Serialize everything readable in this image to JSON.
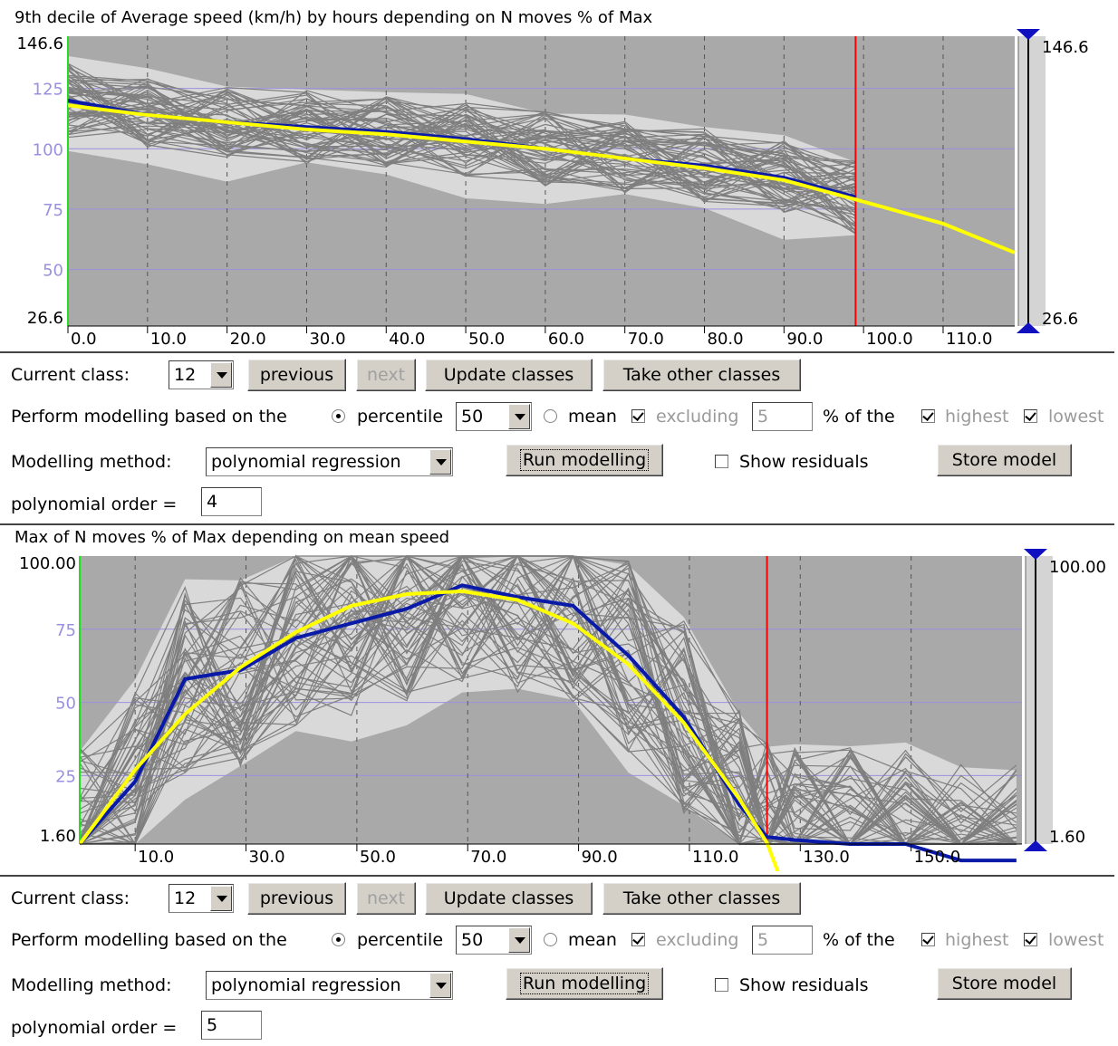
{
  "chart_data": [
    {
      "type": "line",
      "title": "9th decile of Average speed (km/h) by hours depending on N moves % of Max",
      "x_ticks": [
        "0.0",
        "10.0",
        "20.0",
        "30.0",
        "40.0",
        "50.0",
        "60.0",
        "70.0",
        "80.0",
        "90.0",
        "100.0",
        "110.0"
      ],
      "xlim": [
        0,
        119
      ],
      "y_ticks": [
        "125",
        "100",
        "75",
        "50"
      ],
      "y_min_label": "26.6",
      "y_max_label": "146.6",
      "ylim": [
        26.6,
        146.6
      ],
      "right_axis_top": "146.6",
      "right_axis_bottom": "26.6",
      "threshold_x": 99,
      "series": [
        {
          "values_x": [
            0,
            10,
            20,
            30,
            40,
            50,
            60,
            70,
            80,
            90,
            99
          ],
          "values_y": [
            120,
            114,
            111,
            109,
            107,
            104,
            100,
            96,
            93,
            88,
            80
          ]
        },
        {
          "values_x": [
            0,
            10,
            20,
            30,
            40,
            50,
            60,
            70,
            80,
            90,
            99,
            110,
            119
          ],
          "values_y": [
            118,
            114,
            111,
            108,
            106,
            103,
            100,
            96,
            92,
            87,
            79,
            69,
            57
          ]
        }
      ],
      "colors": {
        "median": "#0a1aa8",
        "model": "#ffff00",
        "individual": "#7f7f7f",
        "envelope": "#d9d9d9",
        "background": "#a9a9a9",
        "threshold": "#ff0000",
        "zero_axis": "#22dd22",
        "grid": "#9a90e0"
      }
    },
    {
      "type": "line",
      "title": "Max of N moves % of Max depending on mean speed",
      "x_ticks": [
        "10.0",
        "30.0",
        "50.0",
        "70.0",
        "90.0",
        "110.0",
        "130.0",
        "150.0"
      ],
      "x_tick_values": [
        10,
        30,
        50,
        70,
        90,
        110,
        130,
        150
      ],
      "xlim": [
        0,
        170
      ],
      "y_ticks": [
        "75",
        "50",
        "25"
      ],
      "y_min_label": "1.60",
      "y_max_label": "100.00",
      "ylim": [
        1.6,
        100
      ],
      "right_axis_top": "100.00",
      "right_axis_bottom": "1.60",
      "threshold_x": 124,
      "series": [
        {
          "values_x": [
            0,
            10,
            19,
            29,
            39,
            49,
            59,
            69,
            79,
            89,
            99,
            109,
            119,
            124,
            129,
            139,
            149,
            159,
            169
          ],
          "values_y": [
            1.6,
            23,
            58,
            61,
            72,
            77,
            82,
            90,
            86,
            83,
            66,
            45,
            15,
            4,
            3,
            1.6,
            1.6,
            -4,
            -4
          ]
        },
        {
          "values_x": [
            0,
            10,
            19,
            29,
            39,
            49,
            59,
            69,
            79,
            89,
            99,
            109,
            119,
            124,
            126
          ],
          "values_y": [
            1.6,
            27,
            46,
            62,
            74,
            83,
            87,
            88,
            85,
            77,
            63,
            43,
            17,
            2,
            -8
          ]
        }
      ],
      "colors": {
        "median": "#0a1aa8",
        "model": "#ffff00",
        "individual": "#7f7f7f",
        "envelope": "#d9d9d9",
        "background": "#a9a9a9",
        "threshold": "#ff0000",
        "zero_axis": "#22dd22",
        "grid": "#9a90e0"
      }
    }
  ],
  "controls": [
    {
      "current_class_label": "Current class:",
      "current_class_value": "12",
      "previous_label": "previous",
      "next_label": "next",
      "update_classes_label": "Update classes",
      "take_other_classes_label": "Take other classes",
      "perform_label": "Perform modelling based on the",
      "percentile_label": "percentile",
      "percentile_value": "50",
      "mean_label": "mean",
      "excluding_label": "excluding",
      "excluding_value": "5",
      "percent_of_the_label": "% of the",
      "highest_label": "highest",
      "lowest_label": "lowest",
      "method_label": "Modelling method:",
      "method_value": "polynomial regression",
      "run_label": "Run modelling",
      "show_residuals_label": "Show residuals",
      "store_label": "Store model",
      "order_label": "polynomial order =",
      "order_value": "4"
    },
    {
      "current_class_label": "Current class:",
      "current_class_value": "12",
      "previous_label": "previous",
      "next_label": "next",
      "update_classes_label": "Update classes",
      "take_other_classes_label": "Take other classes",
      "perform_label": "Perform modelling based on the",
      "percentile_label": "percentile",
      "percentile_value": "50",
      "mean_label": "mean",
      "excluding_label": "excluding",
      "excluding_value": "5",
      "percent_of_the_label": "% of the",
      "highest_label": "highest",
      "lowest_label": "lowest",
      "method_label": "Modelling method:",
      "method_value": "polynomial regression",
      "run_label": "Run modelling",
      "show_residuals_label": "Show residuals",
      "store_label": "Store model",
      "order_label": "polynomial order =",
      "order_value": "5"
    }
  ]
}
